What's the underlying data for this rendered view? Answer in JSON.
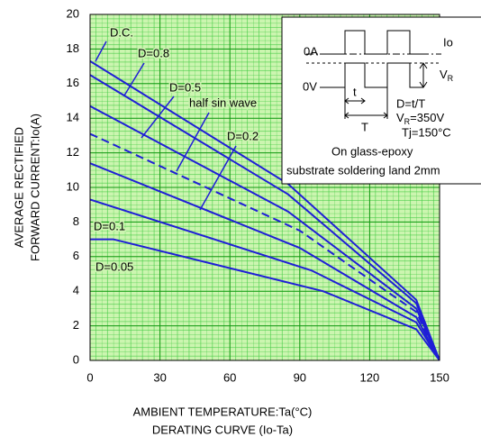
{
  "chart_data": {
    "type": "line",
    "title": "DERATING CURVE (Io-Ta)",
    "x_label": "AMBIENT TEMPERATURE:Ta(°C)",
    "y_label": [
      "AVERAGE RECTIFIED",
      "FORWARD CURRENT:Io(A)"
    ],
    "xlim": [
      0,
      150
    ],
    "xticks": [
      0,
      30,
      60,
      90,
      120,
      150
    ],
    "ylim": [
      0,
      20
    ],
    "yticks": [
      0,
      2,
      4,
      6,
      8,
      10,
      12,
      14,
      16,
      18,
      20
    ],
    "grid": true,
    "series": [
      {
        "name": "D.C.",
        "color": "#1f1fd6",
        "dash": false,
        "x": [
          0,
          85,
          140,
          150
        ],
        "values": [
          17.3,
          10.2,
          3.5,
          0
        ]
      },
      {
        "name": "D=0.8",
        "color": "#1f1fd6",
        "dash": false,
        "x": [
          0,
          85,
          140,
          150
        ],
        "values": [
          16.5,
          9.6,
          3.3,
          0
        ]
      },
      {
        "name": "D=0.5",
        "color": "#1f1fd6",
        "dash": false,
        "x": [
          0,
          85,
          140,
          150
        ],
        "values": [
          14.7,
          8.6,
          3.0,
          0
        ]
      },
      {
        "name": "half sin wave",
        "color": "#1f1fd6",
        "dash": true,
        "x": [
          0,
          90,
          140,
          150
        ],
        "values": [
          13.1,
          7.5,
          2.8,
          0
        ]
      },
      {
        "name": "D=0.2",
        "color": "#1f1fd6",
        "dash": false,
        "x": [
          0,
          90,
          140,
          150
        ],
        "values": [
          11.4,
          6.5,
          2.5,
          0
        ]
      },
      {
        "name": "D=0.1",
        "color": "#1f1fd6",
        "dash": false,
        "x": [
          0,
          95,
          140,
          150
        ],
        "values": [
          9.3,
          5.2,
          2.2,
          0
        ]
      },
      {
        "name": "D=0.05",
        "color": "#1f1fd6",
        "dash": false,
        "x": [
          0,
          10,
          100,
          140,
          150
        ],
        "values": [
          7.0,
          7.0,
          4.0,
          1.8,
          0
        ]
      }
    ],
    "inset": {
      "current_zero": "0A",
      "current": "Io",
      "voltage_zero": "0V",
      "vr": "V",
      "vr_sub": "R",
      "t": "t",
      "T": "T",
      "duty": "D=t/T",
      "vr_value_sub": "R",
      "vr_value": "=350V",
      "vr_value_v": "V",
      "tj": "Tj=150°C",
      "board1": "On glass-epoxy",
      "board2": "substrate soldering land 2mm"
    }
  }
}
